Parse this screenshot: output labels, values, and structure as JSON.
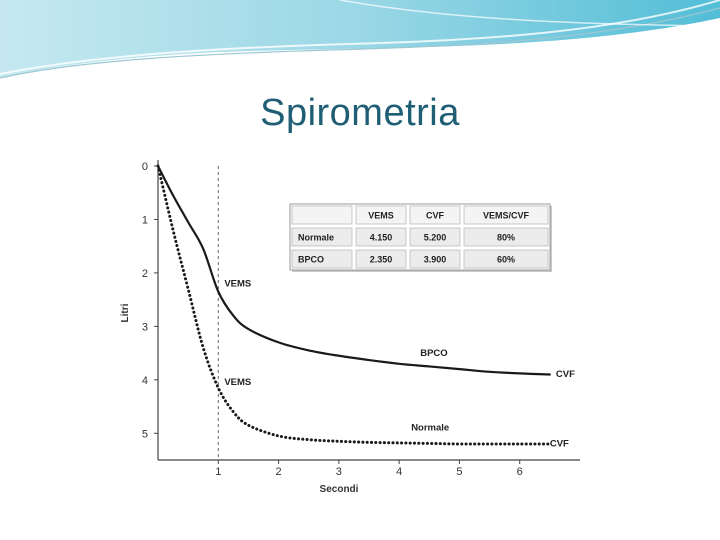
{
  "slide": {
    "title": "Spirometria",
    "accent": "#1f5e74"
  },
  "chart_data": {
    "type": "line",
    "xlabel": "Secondi",
    "ylabel": "Litri",
    "xlim": [
      0,
      7
    ],
    "ylim": [
      0,
      5.5
    ],
    "y_inverted": true,
    "x_ticks": [
      1,
      2,
      3,
      4,
      5,
      6
    ],
    "y_ticks": [
      0,
      1,
      2,
      3,
      4,
      5
    ],
    "reference_line_x": 1,
    "series": [
      {
        "name": "BPCO",
        "style": "solid",
        "x": [
          0,
          0.25,
          0.5,
          0.75,
          1,
          1.25,
          1.5,
          2,
          2.5,
          3,
          3.5,
          4,
          4.5,
          5,
          5.5,
          6,
          6.5
        ],
        "y": [
          0,
          0.55,
          1.05,
          1.55,
          2.35,
          2.8,
          3.05,
          3.3,
          3.45,
          3.55,
          3.63,
          3.7,
          3.75,
          3.8,
          3.85,
          3.88,
          3.9
        ]
      },
      {
        "name": "Normale",
        "style": "dotted",
        "x": [
          0,
          0.25,
          0.5,
          0.75,
          1,
          1.25,
          1.5,
          2,
          2.5,
          3,
          3.5,
          4,
          4.5,
          5,
          5.5,
          6,
          6.5
        ],
        "y": [
          0,
          1.2,
          2.3,
          3.4,
          4.15,
          4.6,
          4.85,
          5.05,
          5.12,
          5.15,
          5.17,
          5.18,
          5.19,
          5.2,
          5.2,
          5.2,
          5.2
        ]
      }
    ],
    "annotations": [
      {
        "text": "VEMS",
        "x": 1.1,
        "y": 2.25
      },
      {
        "text": "VEMS",
        "x": 1.1,
        "y": 4.1
      },
      {
        "text": "BPCO",
        "x": 4.35,
        "y": 3.55
      },
      {
        "text": "CVF",
        "x": 6.6,
        "y": 3.95
      },
      {
        "text": "Normale",
        "x": 4.2,
        "y": 4.95
      },
      {
        "text": "CVF",
        "x": 6.5,
        "y": 5.25
      }
    ],
    "table": {
      "headers": [
        "",
        "VEMS",
        "CVF",
        "VEMS/CVF"
      ],
      "rows": [
        [
          "Normale",
          "4.150",
          "5.200",
          "80%"
        ],
        [
          "BPCO",
          "2.350",
          "3.900",
          "60%"
        ]
      ]
    }
  }
}
